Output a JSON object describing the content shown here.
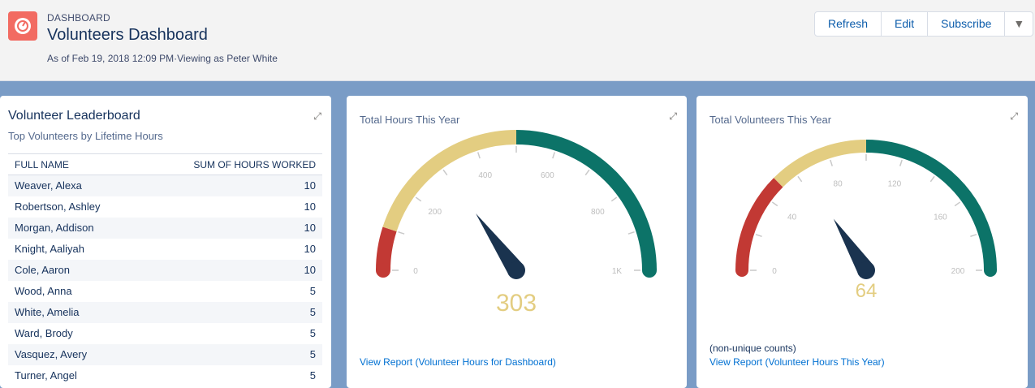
{
  "header": {
    "kicker": "DASHBOARD",
    "title": "Volunteers Dashboard",
    "subtitle": "As of Feb 19, 2018 12:09 PM·Viewing as Peter White",
    "buttons": {
      "refresh": "Refresh",
      "edit": "Edit",
      "subscribe": "Subscribe",
      "more": "▼"
    }
  },
  "leaderboard": {
    "title": "Volunteer Leaderboard",
    "description": "Top Volunteers by Lifetime Hours",
    "columns": [
      "FULL NAME",
      "SUM OF HOURS WORKED"
    ],
    "rows": [
      {
        "name": "Weaver, Alexa",
        "hours": "10"
      },
      {
        "name": "Robertson, Ashley",
        "hours": "10"
      },
      {
        "name": "Morgan, Addison",
        "hours": "10"
      },
      {
        "name": "Knight, Aaliyah",
        "hours": "10"
      },
      {
        "name": "Cole, Aaron",
        "hours": "10"
      },
      {
        "name": "Wood, Anna",
        "hours": "5"
      },
      {
        "name": "White, Amelia",
        "hours": "5"
      },
      {
        "name": "Ward, Brody",
        "hours": "5"
      },
      {
        "name": "Vasquez, Avery",
        "hours": "5"
      },
      {
        "name": "Turner, Angel",
        "hours": "5"
      }
    ]
  },
  "gauges": [
    {
      "title": "Total Hours This Year",
      "value": 303,
      "value_label": "303",
      "min": 0,
      "max": 1000,
      "bands": [
        {
          "to": 100,
          "color": "#c23934"
        },
        {
          "to": 500,
          "color": "#e3cd81"
        },
        {
          "to": 1000,
          "color": "#0c7368"
        }
      ],
      "tick_step": 100,
      "labels": [
        {
          "v": 0,
          "t": "0"
        },
        {
          "v": 200,
          "t": "200"
        },
        {
          "v": 400,
          "t": "400"
        },
        {
          "v": 600,
          "t": "600"
        },
        {
          "v": 800,
          "t": "800"
        },
        {
          "v": 1000,
          "t": "1K"
        }
      ],
      "note": "",
      "link": "View Report (Volunteer Hours for Dashboard)"
    },
    {
      "title": "Total Volunteers This Year",
      "value": 64,
      "value_label": "64",
      "min": 0,
      "max": 200,
      "bands": [
        {
          "to": 50,
          "color": "#c23934"
        },
        {
          "to": 100,
          "color": "#e3cd81"
        },
        {
          "to": 200,
          "color": "#0c7368"
        }
      ],
      "tick_step": 20,
      "labels": [
        {
          "v": 0,
          "t": "0"
        },
        {
          "v": 40,
          "t": "40"
        },
        {
          "v": 80,
          "t": "80"
        },
        {
          "v": 120,
          "t": "120"
        },
        {
          "v": 160,
          "t": "160"
        },
        {
          "v": 200,
          "t": "200"
        }
      ],
      "note": "(non-unique counts)",
      "link": "View Report (Volunteer Hours This Year)"
    }
  ],
  "colors": {
    "needle": "#1a334f",
    "value": "#e3cd81",
    "tick": "#c9c9c9"
  },
  "icons": {
    "logo": "dashboard-gauge-icon",
    "expand": "expand-icon"
  }
}
